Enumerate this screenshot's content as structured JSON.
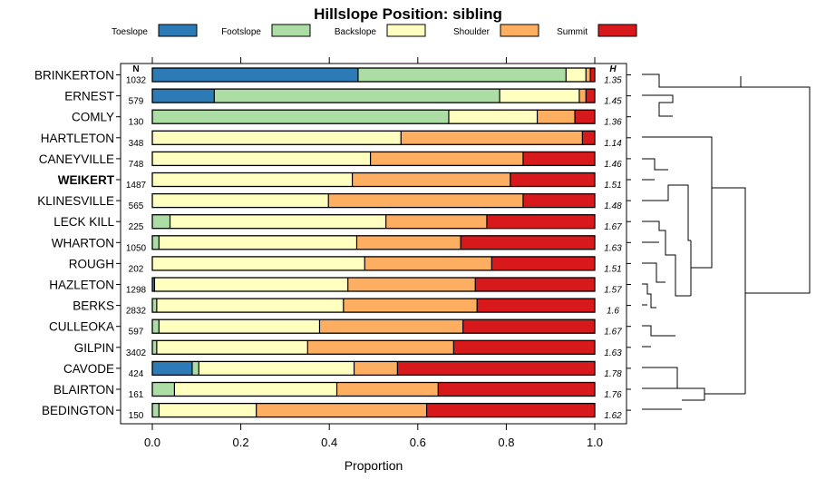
{
  "chart_data": {
    "type": "bar",
    "orientation": "horizontal",
    "stacked": true,
    "title": "Hillslope Position: sibling",
    "xlabel": "Proportion",
    "ylabel": "",
    "xlim": [
      0,
      1
    ],
    "x_ticks": [
      "0.0",
      "0.2",
      "0.4",
      "0.6",
      "0.8",
      "1.0"
    ],
    "n_header": "N",
    "h_header": "H",
    "highlighted": "WEIKERT",
    "legend_position": "top",
    "series": [
      {
        "name": "Toeslope",
        "color": "#2C7BB6"
      },
      {
        "name": "Footslope",
        "color": "#ABDDA4"
      },
      {
        "name": "Backslope",
        "color": "#FFFFBF"
      },
      {
        "name": "Shoulder",
        "color": "#FDAE61"
      },
      {
        "name": "Summit",
        "color": "#D7191C"
      }
    ],
    "categories": [
      {
        "label": "BRINKERTON",
        "n": "1032",
        "h": "1.35",
        "values": [
          0.465,
          0.47,
          0.045,
          0.01,
          0.01
        ]
      },
      {
        "label": "ERNEST",
        "n": "579",
        "h": "1.45",
        "values": [
          0.14,
          0.645,
          0.18,
          0.015,
          0.02
        ]
      },
      {
        "label": "COMLY",
        "n": "130",
        "h": "1.36",
        "values": [
          0.0,
          0.67,
          0.2,
          0.085,
          0.045
        ]
      },
      {
        "label": "HARTLETON",
        "n": "348",
        "h": "1.14",
        "values": [
          0.0,
          0.0,
          0.562,
          0.41,
          0.028
        ]
      },
      {
        "label": "CANEYVILLE",
        "n": "748",
        "h": "1.46",
        "values": [
          0.0,
          0.0,
          0.493,
          0.345,
          0.162
        ]
      },
      {
        "label": "WEIKERT",
        "n": "1487",
        "h": "1.51",
        "values": [
          0.0,
          0.0,
          0.452,
          0.357,
          0.191
        ]
      },
      {
        "label": "KLINESVILLE",
        "n": "565",
        "h": "1.48",
        "values": [
          0.0,
          0.0,
          0.398,
          0.44,
          0.162
        ]
      },
      {
        "label": "LECK KILL",
        "n": "225",
        "h": "1.67",
        "values": [
          0.0,
          0.04,
          0.488,
          0.228,
          0.244
        ]
      },
      {
        "label": "WHARTON",
        "n": "1050",
        "h": "1.63",
        "values": [
          0.0,
          0.015,
          0.447,
          0.235,
          0.303
        ]
      },
      {
        "label": "ROUGH",
        "n": "202",
        "h": "1.51",
        "values": [
          0.0,
          0.0,
          0.48,
          0.287,
          0.233
        ]
      },
      {
        "label": "HAZLETON",
        "n": "1298",
        "h": "1.57",
        "values": [
          0.005,
          0.0,
          0.437,
          0.288,
          0.27
        ]
      },
      {
        "label": "BERKS",
        "n": "2832",
        "h": "1.6",
        "values": [
          0.0,
          0.01,
          0.422,
          0.302,
          0.266
        ]
      },
      {
        "label": "CULLEOKA",
        "n": "597",
        "h": "1.67",
        "values": [
          0.0,
          0.015,
          0.363,
          0.324,
          0.298
        ]
      },
      {
        "label": "GILPIN",
        "n": "3402",
        "h": "1.63",
        "values": [
          0.0,
          0.01,
          0.341,
          0.33,
          0.319
        ]
      },
      {
        "label": "CAVODE",
        "n": "424",
        "h": "1.78",
        "values": [
          0.09,
          0.015,
          0.351,
          0.098,
          0.446
        ]
      },
      {
        "label": "BLAIRTON",
        "n": "161",
        "h": "1.76",
        "values": [
          0.0,
          0.05,
          0.367,
          0.229,
          0.354
        ]
      },
      {
        "label": "BEDINGTON",
        "n": "150",
        "h": "1.62",
        "values": [
          0.0,
          0.015,
          0.22,
          0.385,
          0.38
        ]
      }
    ]
  }
}
